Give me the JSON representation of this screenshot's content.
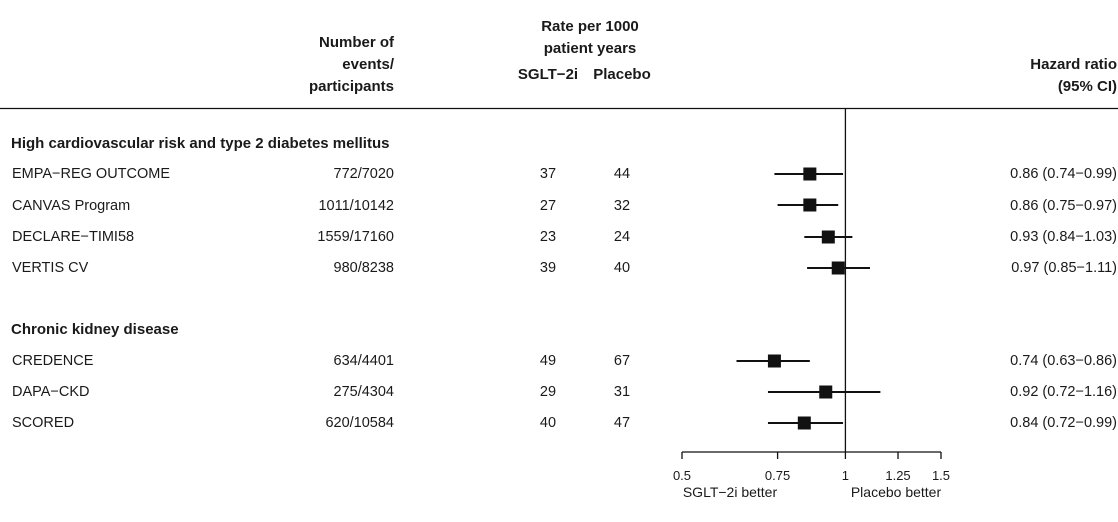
{
  "header": {
    "events": [
      "Number of",
      "events/",
      "participants"
    ],
    "rate": [
      "Rate per 1000",
      "patient years"
    ],
    "sglt2i": "SGLT−2i",
    "placebo": "Placebo",
    "hr": [
      "Hazard ratio",
      "(95% CI)"
    ]
  },
  "groups": [
    {
      "title": "High cardiovascular risk and type 2 diabetes mellitus",
      "rows": [
        {
          "trial": "EMPA−REG OUTCOME",
          "events": "772/7020",
          "sglt2i": "37",
          "placebo": "44",
          "hr_text": "0.86 (0.74−0.99)"
        },
        {
          "trial": "CANVAS Program",
          "events": "1011/10142",
          "sglt2i": "27",
          "placebo": "32",
          "hr_text": "0.86 (0.75−0.97)"
        },
        {
          "trial": "DECLARE−TIMI58",
          "events": "1559/17160",
          "sglt2i": "23",
          "placebo": "24",
          "hr_text": "0.93 (0.84−1.03)"
        },
        {
          "trial": "VERTIS CV",
          "events": "980/8238",
          "sglt2i": "39",
          "placebo": "40",
          "hr_text": "0.97 (0.85−1.11)"
        }
      ]
    },
    {
      "title": "Chronic kidney disease",
      "rows": [
        {
          "trial": "CREDENCE",
          "events": "634/4401",
          "sglt2i": "49",
          "placebo": "67",
          "hr_text": "0.74 (0.63−0.86)"
        },
        {
          "trial": "DAPA−CKD",
          "events": "275/4304",
          "sglt2i": "29",
          "placebo": "31",
          "hr_text": "0.92 (0.72−1.16)"
        },
        {
          "trial": "SCORED",
          "events": "620/10584",
          "sglt2i": "40",
          "placebo": "47",
          "hr_text": "0.84 (0.72−0.99)"
        }
      ]
    }
  ],
  "chart_data": {
    "type": "forest",
    "x_scale": "log",
    "xlim": [
      0.5,
      1.5
    ],
    "x_ticks": [
      0.5,
      0.75,
      1,
      1.25,
      1.5
    ],
    "x_tick_labels": [
      "0.5",
      "0.75",
      "1",
      "1.25",
      "1.5"
    ],
    "reference_line": 1,
    "favors_left": "SGLT−2i better",
    "favors_right": "Placebo better",
    "points": [
      {
        "trial": "EMPA−REG OUTCOME",
        "hr": 0.86,
        "lower": 0.74,
        "upper": 0.99
      },
      {
        "trial": "CANVAS Program",
        "hr": 0.86,
        "lower": 0.75,
        "upper": 0.97
      },
      {
        "trial": "DECLARE−TIMI58",
        "hr": 0.93,
        "lower": 0.84,
        "upper": 1.03
      },
      {
        "trial": "VERTIS CV",
        "hr": 0.97,
        "lower": 0.85,
        "upper": 1.11
      },
      {
        "trial": "CREDENCE",
        "hr": 0.74,
        "lower": 0.63,
        "upper": 0.86
      },
      {
        "trial": "DAPA−CKD",
        "hr": 0.92,
        "lower": 0.72,
        "upper": 1.16
      },
      {
        "trial": "SCORED",
        "hr": 0.84,
        "lower": 0.72,
        "upper": 0.99
      }
    ]
  }
}
